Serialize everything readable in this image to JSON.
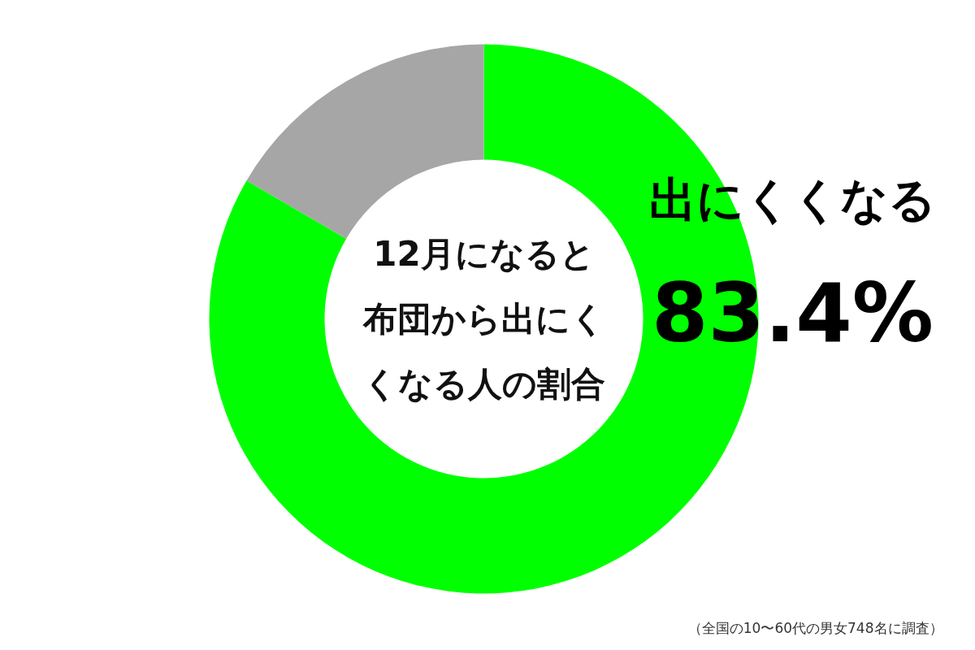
{
  "chart_data": {
    "type": "donut",
    "title": "12月になると布団から出にくくなる人の割合",
    "categories": [
      "出にくくなる",
      null
    ],
    "values": [
      83.4,
      16.6
    ],
    "colors": [
      "#00ff00",
      "#a6a6a6"
    ],
    "value_labels": [
      "83.4%",
      null
    ],
    "annotations": [
      "（全国の10〜60代の男女748名に調査）"
    ]
  }
}
